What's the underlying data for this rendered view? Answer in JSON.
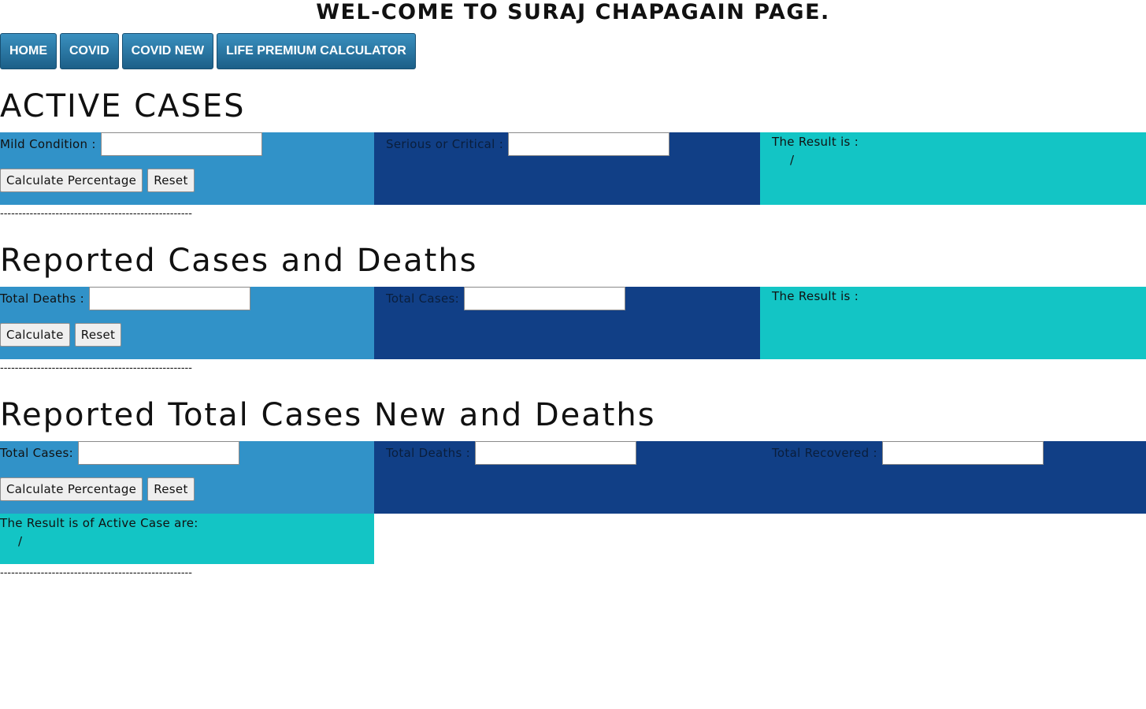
{
  "header": {
    "title": "WEL-COME TO SURAJ CHAPAGAIN PAGE."
  },
  "nav": {
    "items": [
      {
        "label": "HOME"
      },
      {
        "label": "COVID"
      },
      {
        "label": "COVID NEW"
      },
      {
        "label": "LIFE PREMIUM CALCULATOR"
      }
    ]
  },
  "separator": "----------------------------------------------------",
  "active_cases": {
    "title": "ACTIVE CASES",
    "mild_label": "Mild Condition :",
    "mild_value": "",
    "serious_label": "Serious or Critical :",
    "serious_value": "",
    "calc_button": "Calculate Percentage",
    "reset_button": "Reset",
    "result_label": "The Result is :",
    "result_value": "/"
  },
  "reported_cases": {
    "title": "Reported Cases and Deaths",
    "deaths_label": "Total Deaths :",
    "deaths_value": "",
    "cases_label": "Total Cases:",
    "cases_value": "",
    "calc_button": "Calculate",
    "reset_button": "Reset",
    "result_label": "The Result is :"
  },
  "reported_total": {
    "title": "Reported Total Cases New and Deaths",
    "cases_label": "Total Cases:",
    "cases_value": "",
    "deaths_label": "Total Deaths :",
    "deaths_value": "",
    "recovered_label": "Total Recovered :",
    "recovered_value": "",
    "calc_button": "Calculate Percentage",
    "reset_button": "Reset",
    "result_label": "The Result is of Active Case are:",
    "result_value": "/"
  },
  "colors": {
    "panel_light": "#3192c8",
    "panel_dark": "#113f86",
    "panel_teal": "#13c5c5",
    "nav_button": "#2a78a6"
  }
}
